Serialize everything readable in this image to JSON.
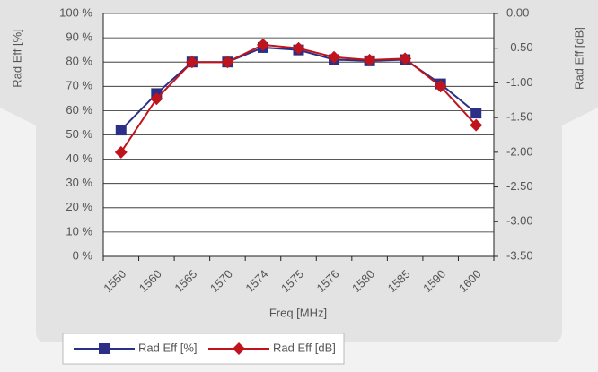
{
  "chart_data": {
    "type": "line",
    "xlabel": "Freq [MHz]",
    "ylabel": "Rad Eff [%]",
    "y2label": "Rad Eff [dB]",
    "categories": [
      "1550",
      "1560",
      "1565",
      "1570",
      "1574",
      "1575",
      "1576",
      "1580",
      "1585",
      "1590",
      "1600"
    ],
    "series": [
      {
        "name": "Rad Eff [%]",
        "color": "#2b2f86",
        "marker": "square",
        "values": [
          52,
          67,
          80,
          80,
          86,
          85,
          81,
          80.5,
          81,
          71,
          59
        ]
      },
      {
        "name": "Rad Eff [dB]",
        "color": "#c0141c",
        "marker": "diamond",
        "axis": "y2",
        "values": [
          -2.0,
          -1.23,
          -0.7,
          -0.7,
          -0.45,
          -0.5,
          -0.63,
          -0.67,
          -0.65,
          -1.05,
          -1.61
        ]
      }
    ],
    "ylim": [
      0,
      100
    ],
    "yticks": [
      {
        "value": 0,
        "label": "0 %"
      },
      {
        "value": 10,
        "label": "10 %"
      },
      {
        "value": 20,
        "label": "20 %"
      },
      {
        "value": 30,
        "label": "30 %"
      },
      {
        "value": 40,
        "label": "40 %"
      },
      {
        "value": 50,
        "label": "50 %"
      },
      {
        "value": 60,
        "label": "60 %"
      },
      {
        "value": 70,
        "label": "70 %"
      },
      {
        "value": 80,
        "label": "80 %"
      },
      {
        "value": 90,
        "label": "90 %"
      },
      {
        "value": 100,
        "label": "100 %"
      }
    ],
    "y2lim": [
      -3.5,
      0
    ],
    "y2ticks": [
      {
        "value": -3.5,
        "label": "-3.50"
      },
      {
        "value": -3,
        "label": "-3.00"
      },
      {
        "value": -2.5,
        "label": "-2.50"
      },
      {
        "value": -2,
        "label": "-2.00"
      },
      {
        "value": -1.5,
        "label": "-1.50"
      },
      {
        "value": -1,
        "label": "-1.00"
      },
      {
        "value": -0.5,
        "label": "-0.50"
      },
      {
        "value": 0,
        "label": "0.00"
      }
    ],
    "grid": true,
    "legend": "bottom"
  }
}
